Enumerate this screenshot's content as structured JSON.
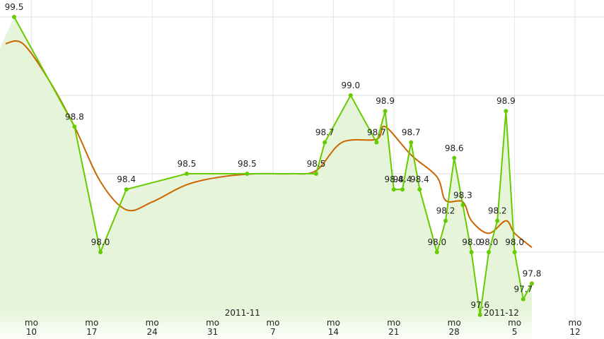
{
  "chart_data": {
    "type": "line",
    "x_axis": {
      "day_prefix": "mo",
      "ticks": [
        {
          "date": "2011-10-10",
          "day": "10"
        },
        {
          "date": "2011-10-17",
          "day": "17"
        },
        {
          "date": "2011-10-24",
          "day": "24"
        },
        {
          "date": "2011-10-31",
          "day": "31"
        },
        {
          "date": "2011-11-07",
          "day": "7"
        },
        {
          "date": "2011-11-14",
          "day": "14"
        },
        {
          "date": "2011-11-21",
          "day": "21"
        },
        {
          "date": "2011-11-28",
          "day": "28"
        },
        {
          "date": "2011-12-05",
          "day": "5"
        },
        {
          "date": "2011-12-12",
          "day": "12"
        }
      ],
      "month_labels": [
        {
          "date": "2011-11-01",
          "text": "2011-11"
        },
        {
          "date": "2011-12-01",
          "text": "2011-12"
        }
      ],
      "range": [
        "2011-10-07",
        "2011-12-17"
      ]
    },
    "y_axis": {
      "range": [
        97.6,
        99.7
      ],
      "gridlines": [
        98.0,
        98.5,
        99.0,
        99.5
      ],
      "tick_labels_visible": false
    },
    "grid": true,
    "legend": "none",
    "series": [
      {
        "values_labeled": true,
        "color": "#66cc00",
        "fill": "#e6f5da",
        "points": [
          {
            "x": "2011-10-08",
            "y": 99.5,
            "label": "99.5"
          },
          {
            "x": "2011-10-15",
            "y": 98.8,
            "label": "98.8"
          },
          {
            "x": "2011-10-18",
            "y": 98.0,
            "label": "98.0"
          },
          {
            "x": "2011-10-21",
            "y": 98.4,
            "label": "98.4"
          },
          {
            "x": "2011-10-28",
            "y": 98.5,
            "label": "98.5"
          },
          {
            "x": "2011-11-04",
            "y": 98.5,
            "label": "98.5"
          },
          {
            "x": "2011-11-12",
            "y": 98.5,
            "label": "98.5"
          },
          {
            "x": "2011-11-13",
            "y": 98.7,
            "label": "98.7"
          },
          {
            "x": "2011-11-16",
            "y": 99.0,
            "label": "99.0"
          },
          {
            "x": "2011-11-19",
            "y": 98.7,
            "label": "98.7"
          },
          {
            "x": "2011-11-20",
            "y": 98.9,
            "label": "98.9"
          },
          {
            "x": "2011-11-21",
            "y": 98.4,
            "label": "98.4"
          },
          {
            "x": "2011-11-22",
            "y": 98.4,
            "label": "98.4"
          },
          {
            "x": "2011-11-23",
            "y": 98.7,
            "label": "98.7"
          },
          {
            "x": "2011-11-24",
            "y": 98.4,
            "label": "98.4"
          },
          {
            "x": "2011-11-26",
            "y": 98.0,
            "label": "98.0"
          },
          {
            "x": "2011-11-27",
            "y": 98.2,
            "label": "98.2"
          },
          {
            "x": "2011-11-28",
            "y": 98.6,
            "label": "98.6"
          },
          {
            "x": "2011-11-29",
            "y": 98.3,
            "label": "98.3"
          },
          {
            "x": "2011-11-30",
            "y": 98.0,
            "label": "98.0"
          },
          {
            "x": "2011-12-01",
            "y": 97.6,
            "label": "97.6"
          },
          {
            "x": "2011-12-02",
            "y": 98.0,
            "label": "98.0"
          },
          {
            "x": "2011-12-03",
            "y": 98.2,
            "label": "98.2"
          },
          {
            "x": "2011-12-04",
            "y": 98.9,
            "label": "98.9"
          },
          {
            "x": "2011-12-05",
            "y": 98.0,
            "label": "98.0"
          },
          {
            "x": "2011-12-06",
            "y": 97.7,
            "label": "97.7"
          },
          {
            "x": "2011-12-07",
            "y": 97.8,
            "label": "97.8"
          }
        ]
      },
      {
        "values_labeled": false,
        "color": "#cc6600",
        "smoothing": "moving-average trend line",
        "points": [
          {
            "x": "2011-10-07",
            "y": 99.33
          },
          {
            "x": "2011-10-09",
            "y": 99.33
          },
          {
            "x": "2011-10-12",
            "y": 99.1
          },
          {
            "x": "2011-10-15",
            "y": 98.8
          },
          {
            "x": "2011-10-18",
            "y": 98.45
          },
          {
            "x": "2011-10-21",
            "y": 98.27
          },
          {
            "x": "2011-10-24",
            "y": 98.32
          },
          {
            "x": "2011-10-28",
            "y": 98.43
          },
          {
            "x": "2011-11-01",
            "y": 98.48
          },
          {
            "x": "2011-11-05",
            "y": 98.5
          },
          {
            "x": "2011-11-09",
            "y": 98.5
          },
          {
            "x": "2011-11-12",
            "y": 98.52
          },
          {
            "x": "2011-11-15",
            "y": 98.7
          },
          {
            "x": "2011-11-19",
            "y": 98.72
          },
          {
            "x": "2011-11-20",
            "y": 98.8
          },
          {
            "x": "2011-11-23",
            "y": 98.62
          },
          {
            "x": "2011-11-26",
            "y": 98.48
          },
          {
            "x": "2011-11-27",
            "y": 98.33
          },
          {
            "x": "2011-11-29",
            "y": 98.32
          },
          {
            "x": "2011-11-30",
            "y": 98.2
          },
          {
            "x": "2011-12-02",
            "y": 98.12
          },
          {
            "x": "2011-12-04",
            "y": 98.2
          },
          {
            "x": "2011-12-05",
            "y": 98.12
          },
          {
            "x": "2011-12-07",
            "y": 98.03
          }
        ]
      }
    ]
  }
}
